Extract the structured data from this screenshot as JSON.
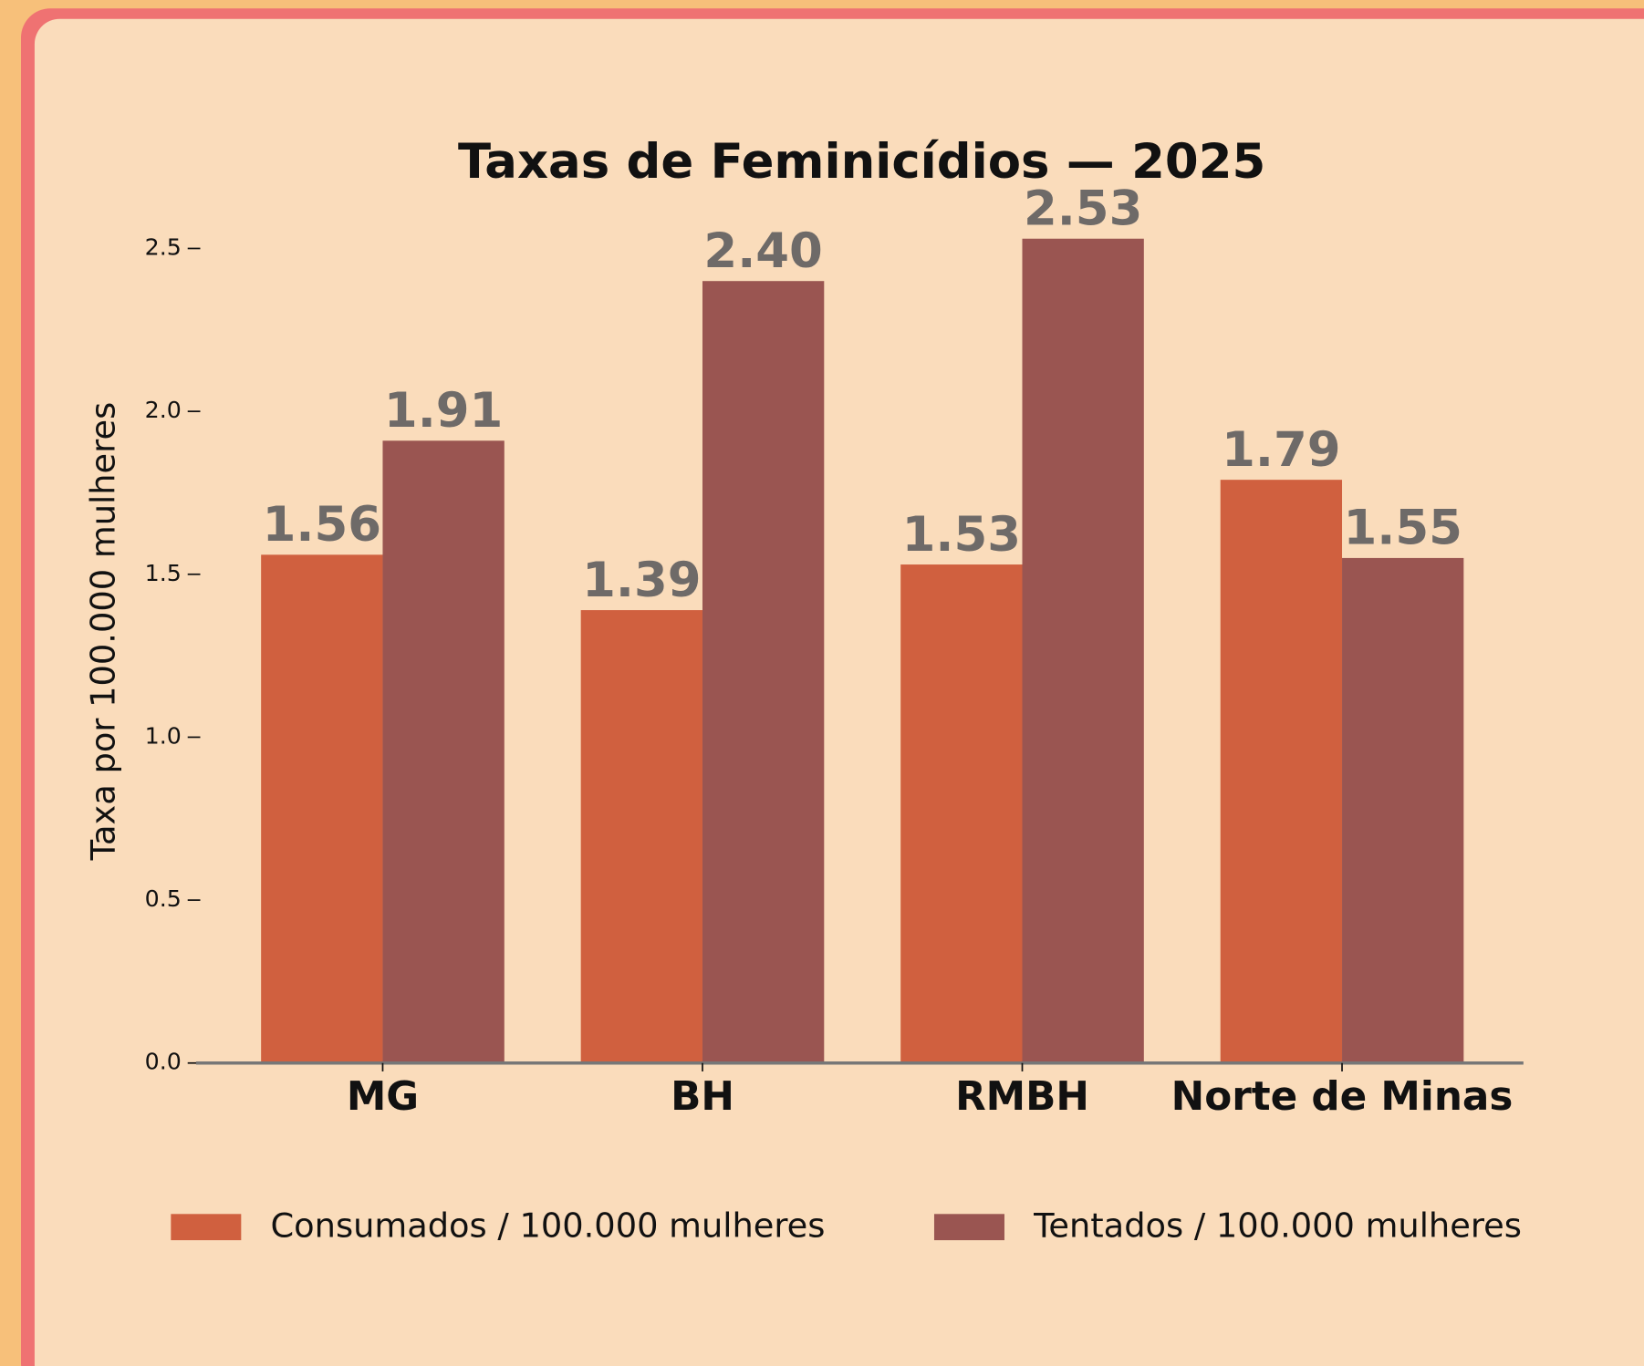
{
  "chart_data": {
    "type": "bar",
    "title": "Taxas de Feminicídios — 2025",
    "y_label": "Taxa por 100.000 mulheres",
    "categories": [
      "MG",
      "BH",
      "RMBH",
      "Norte de Minas"
    ],
    "series": [
      {
        "name": "Consumados / 100.000 mulheres",
        "color": "#d0603f",
        "values": [
          1.56,
          1.39,
          1.53,
          1.79
        ],
        "value_labels": [
          "1.56",
          "1.39",
          "1.53",
          "1.79"
        ]
      },
      {
        "name": "Tentados / 100.000 mulheres",
        "color": "#9a5551",
        "values": [
          1.91,
          2.4,
          2.53,
          1.55
        ],
        "value_labels": [
          "1.91",
          "2.40",
          "2.53",
          "1.55"
        ]
      }
    ],
    "ylim": [
      0,
      2.5
    ],
    "yticks": [
      {
        "value": 0,
        "label": "0.0"
      },
      {
        "value": 0.5,
        "label": "0.5"
      },
      {
        "value": 1,
        "label": "1.0"
      },
      {
        "value": 1.5,
        "label": "1.5"
      },
      {
        "value": 2,
        "label": "2.0"
      },
      {
        "value": 2.5,
        "label": "2.5"
      }
    ],
    "legend": "bottom"
  }
}
